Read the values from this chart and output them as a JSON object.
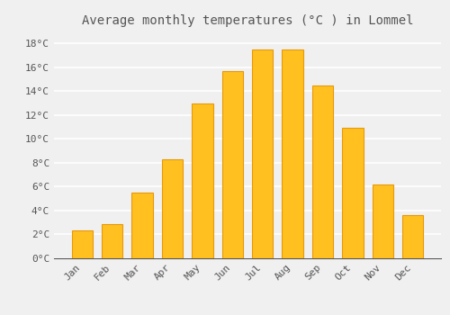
{
  "title": "Average monthly temperatures (°C ) in Lommel",
  "months": [
    "Jan",
    "Feb",
    "Mar",
    "Apr",
    "May",
    "Jun",
    "Jul",
    "Aug",
    "Sep",
    "Oct",
    "Nov",
    "Dec"
  ],
  "values": [
    2.3,
    2.9,
    5.5,
    8.3,
    13.0,
    15.7,
    17.5,
    17.5,
    14.5,
    10.9,
    6.2,
    3.6
  ],
  "bar_color": "#FFC020",
  "bar_edge_color": "#E8980A",
  "background_color": "#F0F0F0",
  "grid_color": "#FFFFFF",
  "text_color": "#555555",
  "ylim": [
    0,
    19
  ],
  "yticks": [
    0,
    2,
    4,
    6,
    8,
    10,
    12,
    14,
    16,
    18
  ],
  "ytick_labels": [
    "0°C",
    "2°C",
    "4°C",
    "6°C",
    "8°C",
    "10°C",
    "12°C",
    "14°C",
    "16°C",
    "18°C"
  ],
  "title_fontsize": 10,
  "tick_fontsize": 8,
  "font_family": "monospace",
  "bar_width": 0.7
}
